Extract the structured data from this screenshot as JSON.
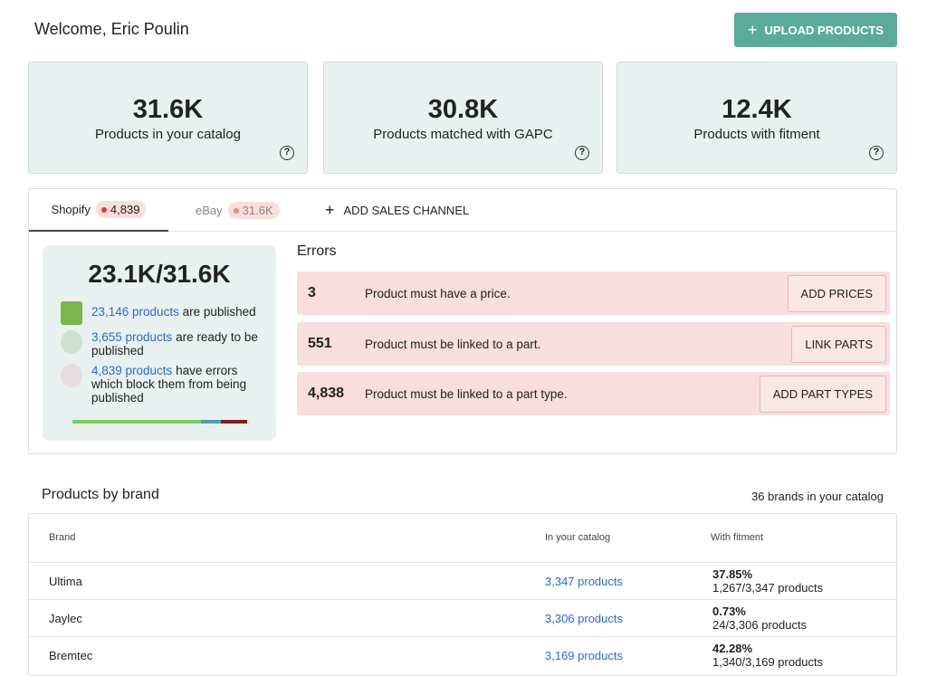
{
  "header": {
    "title": "Welcome, Eric Poulin",
    "upload_button": "UPLOAD PRODUCTS"
  },
  "stats": [
    {
      "value": "31.6K",
      "label": "Products in your catalog"
    },
    {
      "value": "30.8K",
      "label": "Products matched with GAPC"
    },
    {
      "value": "12.4K",
      "label": "Products with fitment"
    }
  ],
  "tabs": [
    {
      "name": "Shopify",
      "badge": "4,839"
    },
    {
      "name": "eBay",
      "badge": "31.6K"
    }
  ],
  "add_channel": "ADD SALES CHANNEL",
  "summary": {
    "headline": "23.1K/31.6K",
    "items": [
      {
        "link": "23,146 products",
        "text": "are published"
      },
      {
        "link": "3,655 products",
        "text": "are ready to be published"
      },
      {
        "link": "4,839 products",
        "text": "have errors which block them from being published"
      }
    ]
  },
  "errors": {
    "title": "Errors",
    "items": [
      {
        "count": "3",
        "message": "Product must have a price.",
        "action": "ADD PRICES"
      },
      {
        "count": "551",
        "message": "Product must be linked to a part.",
        "action": "LINK PARTS"
      },
      {
        "count": "4,838",
        "message": "Product must be linked to a part type.",
        "action": "ADD PART TYPES"
      }
    ]
  },
  "brands": {
    "title": "Products by brand",
    "count_note": "36 brands in your catalog",
    "columns": [
      "Brand",
      "In your catalog",
      "With fitment"
    ],
    "rows": [
      {
        "brand": "Ultima",
        "catalog": "3,347 products",
        "percent": "37.85%",
        "ratio": "1,267/3,347 products"
      },
      {
        "brand": "Jaylec",
        "catalog": "3,306 products",
        "percent": "0.73%",
        "ratio": "24/3,306 products"
      },
      {
        "brand": "Bremtec",
        "catalog": "3,169 products",
        "percent": "42.28%",
        "ratio": "1,340/3,169 products"
      }
    ]
  }
}
